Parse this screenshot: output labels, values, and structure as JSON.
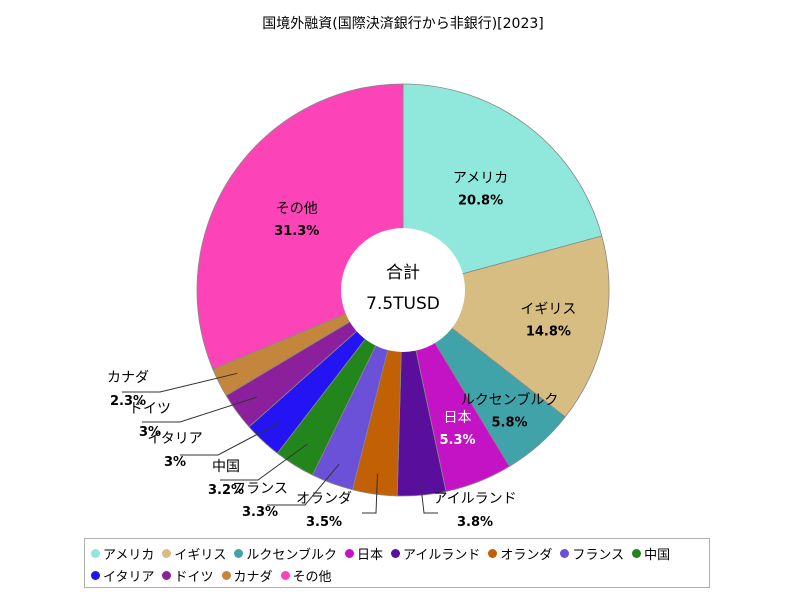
{
  "chart_data": {
    "type": "pie",
    "title": "国境外融資(国際決済銀行から非銀行)[2023]",
    "center_label": "合計",
    "center_value": "7.5TUSD",
    "slices": [
      {
        "label": "アメリカ",
        "value": 20.8,
        "display": "20.8%",
        "color": "#90e8dc"
      },
      {
        "label": "イギリス",
        "value": 14.8,
        "display": "14.8%",
        "color": "#d7bd82"
      },
      {
        "label": "ルクセンブルク",
        "value": 5.8,
        "display": "5.8%",
        "color": "#41a3aa"
      },
      {
        "label": "日本",
        "value": 5.3,
        "display": "5.3%",
        "color": "#c413c4"
      },
      {
        "label": "アイルランド",
        "value": 3.8,
        "display": "3.8%",
        "color": "#5a0e9c"
      },
      {
        "label": "オランダ",
        "value": 3.5,
        "display": "3.5%",
        "color": "#c26006"
      },
      {
        "label": "フランス",
        "value": 3.3,
        "display": "3.3%",
        "color": "#6b50d8"
      },
      {
        "label": "中国",
        "value": 3.2,
        "display": "3.2%",
        "color": "#23861c"
      },
      {
        "label": "イタリア",
        "value": 3.0,
        "display": "3%",
        "color": "#2413f2"
      },
      {
        "label": "ドイツ",
        "value": 3.0,
        "display": "3%",
        "color": "#8c1f9c"
      },
      {
        "label": "カナダ",
        "value": 2.3,
        "display": "2.3%",
        "color": "#c4863c"
      },
      {
        "label": "その他",
        "value": 31.3,
        "display": "31.3%",
        "color": "#fc44b8"
      }
    ],
    "legend_placement": "bottom"
  }
}
